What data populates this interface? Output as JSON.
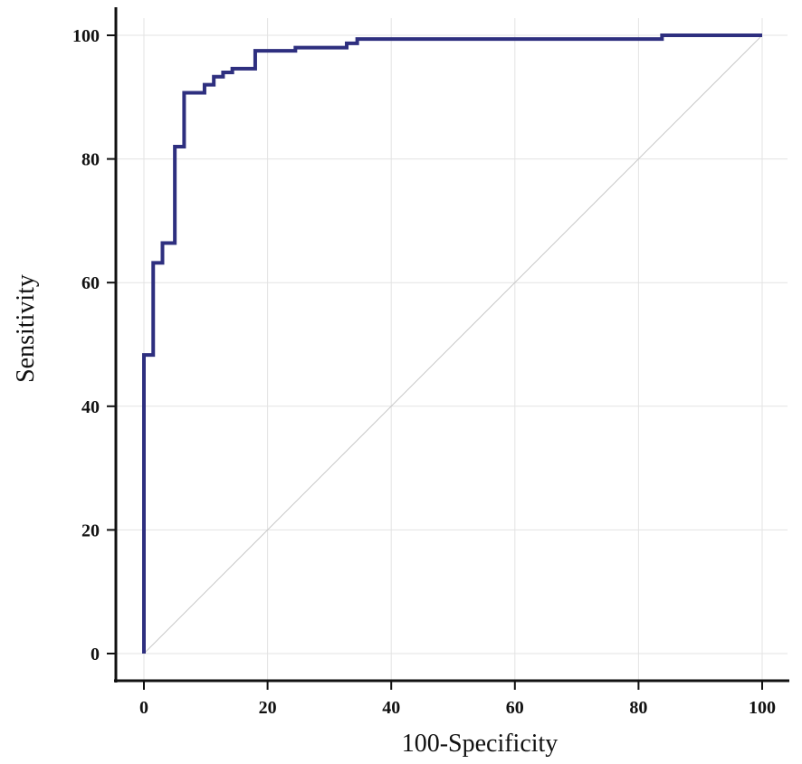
{
  "chart_data": {
    "type": "line",
    "title": "",
    "xlabel": "100-Specificity",
    "ylabel": "Sensitivity",
    "xlim": [
      0,
      100
    ],
    "ylim": [
      0,
      100
    ],
    "xticks": [
      "0",
      "20",
      "40",
      "60",
      "80",
      "100"
    ],
    "yticks": [
      "0",
      "20",
      "40",
      "60",
      "80",
      "100"
    ],
    "grid": true,
    "series": [
      {
        "role": "roc-curve",
        "color": "#2e2f7f",
        "x": [
          0,
          0,
          1.5,
          1.5,
          3,
          3,
          5,
          5,
          6.5,
          6.5,
          9.8,
          9.8,
          11.3,
          11.3,
          12.8,
          12.8,
          14.3,
          14.3,
          18,
          18,
          24.5,
          24.5,
          32.8,
          32.8,
          34.5,
          34.5,
          83.8,
          83.8,
          100
        ],
        "y": [
          0,
          48.3,
          48.3,
          63.2,
          63.2,
          66.4,
          66.4,
          82,
          82,
          90.7,
          90.7,
          92,
          92,
          93.3,
          93.3,
          94,
          94,
          94.6,
          94.6,
          97.5,
          97.5,
          98,
          98,
          98.7,
          98.7,
          99.4,
          99.4,
          100,
          100
        ]
      },
      {
        "role": "reference-diagonal",
        "color": "#c8c8c8",
        "x": [
          0,
          100
        ],
        "y": [
          0,
          100
        ]
      }
    ]
  }
}
